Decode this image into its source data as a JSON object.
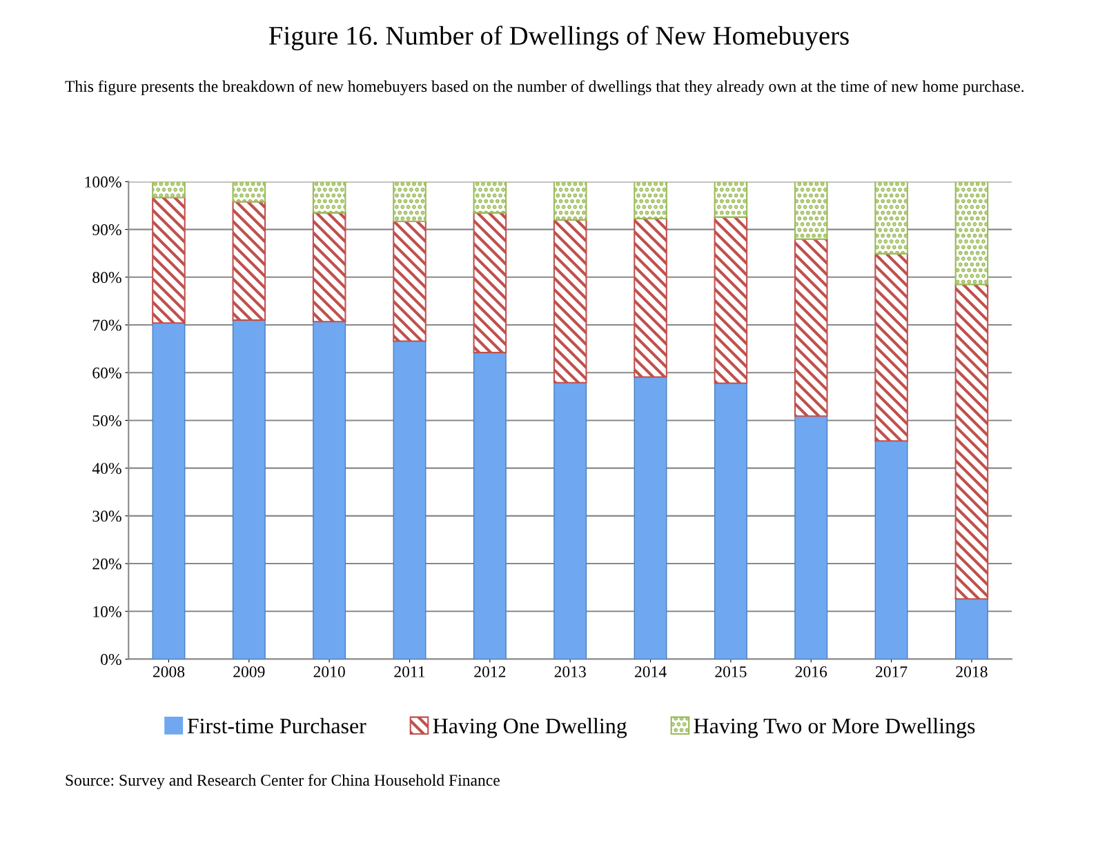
{
  "chart_data": {
    "type": "bar",
    "stacked": true,
    "title": "Figure 16. Number of Dwellings of New Homebuyers",
    "subtitle": "This figure presents the breakdown of new homebuyers based on the number of dwellings that they already own at the time of new home purchase.",
    "categories": [
      "2008",
      "2009",
      "2010",
      "2011",
      "2012",
      "2013",
      "2014",
      "2015",
      "2016",
      "2017",
      "2018"
    ],
    "series": [
      {
        "name": "First-time Purchaser",
        "color": "#6fa8f0",
        "values": [
          70.4,
          71.0,
          70.7,
          66.6,
          64.2,
          57.9,
          59.1,
          57.8,
          50.9,
          45.7,
          12.6
        ]
      },
      {
        "name": "Having One Dwelling",
        "color": "#c0504d",
        "values": [
          26.3,
          24.8,
          22.8,
          25.1,
          29.3,
          34.1,
          33.2,
          34.8,
          37.1,
          39.2,
          65.9
        ]
      },
      {
        "name": "Having Two or More Dwellings",
        "color": "#9bbb59",
        "values": [
          3.3,
          4.2,
          6.5,
          8.3,
          6.5,
          8.0,
          7.7,
          7.4,
          12.0,
          15.1,
          21.5
        ]
      }
    ],
    "ylim": [
      0,
      100
    ],
    "yticks": [
      {
        "value": 0,
        "label": "0%"
      },
      {
        "value": 10,
        "label": "10%"
      },
      {
        "value": 20,
        "label": "20%"
      },
      {
        "value": 30,
        "label": "30%"
      },
      {
        "value": 40,
        "label": "40%"
      },
      {
        "value": 50,
        "label": "50%"
      },
      {
        "value": 60,
        "label": "60%"
      },
      {
        "value": 70,
        "label": "70%"
      },
      {
        "value": 80,
        "label": "80%"
      },
      {
        "value": 90,
        "label": "90%"
      },
      {
        "value": 100,
        "label": "100%"
      }
    ],
    "grid": "y",
    "legend": "bottom",
    "annotations": [
      "Source: Survey and Research Center for China Household Finance"
    ]
  }
}
